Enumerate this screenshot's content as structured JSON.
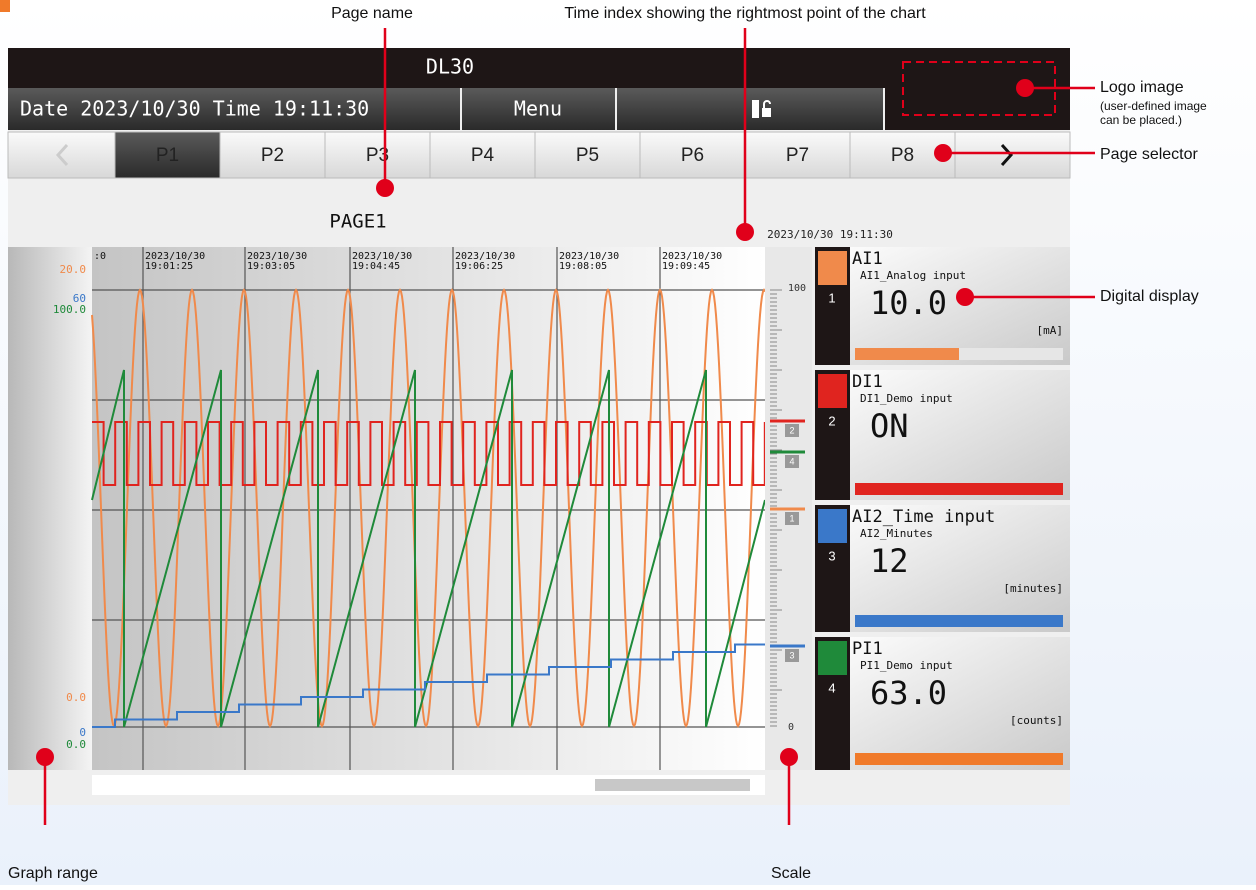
{
  "annotations": {
    "page_name": "Page name",
    "time_index": "Time index showing the rightmost point of the chart",
    "logo": "Logo image",
    "logo_note": [
      "(user-defined image",
      "can be placed.)"
    ],
    "page_selector": "Page selector",
    "digital_display": "Digital display",
    "graph_range": "Graph range",
    "scale": "Scale"
  },
  "header": {
    "title": "DL30",
    "datetime": "Date 2023/10/30 Time 19:11:30",
    "menu": "Menu"
  },
  "pages": [
    "P1",
    "P2",
    "P3",
    "P4",
    "P5",
    "P6",
    "P7",
    "P8"
  ],
  "page_title": "PAGE1",
  "timestamp": "2023/10/30 19:11:30",
  "time_labels": [
    {
      "date": "2023/10/30",
      "time": "19:01:25"
    },
    {
      "date": "2023/10/30",
      "time": "19:03:05"
    },
    {
      "date": "2023/10/30",
      "time": "19:04:45"
    },
    {
      "date": "2023/10/30",
      "time": "19:06:25"
    },
    {
      "date": "2023/10/30",
      "time": "19:08:05"
    },
    {
      "date": "2023/10/30",
      "time": "19:09:45"
    }
  ],
  "time_label_cut": ":0",
  "range_top": [
    {
      "text": "20.0",
      "color": "#f08a4b"
    },
    {
      "text": "60",
      "color": "#3a78c9"
    },
    {
      "text": "100.0",
      "color": "#1f8a3a"
    }
  ],
  "range_bottom": [
    {
      "text": "0.0",
      "color": "#f08a4b"
    },
    {
      "text": "0",
      "color": "#3a78c9"
    },
    {
      "text": "0.0",
      "color": "#1f8a3a"
    }
  ],
  "scale": {
    "top": "100",
    "bottom": "0",
    "markers": [
      "2",
      "4",
      "1",
      "3"
    ]
  },
  "channels": [
    {
      "number": "1",
      "tag": "AI1",
      "comment": "AI1_Analog input",
      "value": "10.0",
      "unit": "[mA]",
      "color": "#f08a4b"
    },
    {
      "number": "2",
      "tag": "DI1",
      "comment": "DI1_Demo input",
      "value": "ON",
      "color": "#e0241f"
    },
    {
      "number": "3",
      "tag": "AI2_Time input",
      "comment": "AI2_Minutes",
      "value": "12",
      "unit": "[minutes]",
      "color": "#3a78c9"
    },
    {
      "number": "4",
      "tag": "PI1",
      "comment": "PI1_Demo input",
      "value": "63.0",
      "unit": "[counts]",
      "color": "#1f8a3a"
    }
  ]
}
